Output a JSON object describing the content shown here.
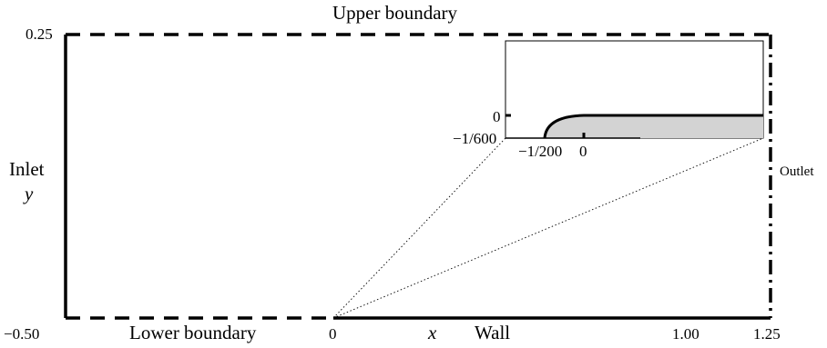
{
  "labels": {
    "upper_boundary": "Upper boundary",
    "lower_boundary": "Lower boundary",
    "wall": "Wall",
    "inlet": "Inlet",
    "outlet": "Outlet",
    "x_axis": "x",
    "y_axis": "y"
  },
  "axis_ticks": {
    "y_top": "0.25",
    "x_left": "−0.50",
    "x_zero": "0",
    "x_one": "1.00",
    "x_right": "1.25"
  },
  "inset": {
    "y_tick_zero": "0",
    "y_tick_bottom": "−1/600",
    "x_tick_left": "−1/200",
    "x_tick_zero": "0"
  },
  "colors": {
    "line": "#000000",
    "shade": "#d3d3d3"
  }
}
